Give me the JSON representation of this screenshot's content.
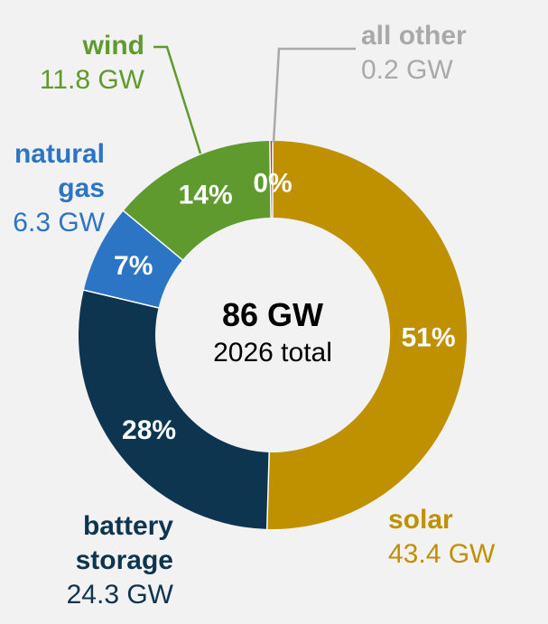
{
  "chart_data": {
    "type": "pie",
    "style": "donut",
    "title": "",
    "center_value": "86 GW",
    "center_label": "2026 total",
    "slices": [
      {
        "name": "solar",
        "value_label": "43.4 GW",
        "value": 43.4,
        "percent_label": "51%",
        "color": "#bf9000"
      },
      {
        "name": "battery storage",
        "name_lines": [
          "battery",
          "storage"
        ],
        "value_label": "24.3 GW",
        "value": 24.3,
        "percent_label": "28%",
        "color": "#0e3550"
      },
      {
        "name": "natural gas",
        "name_lines": [
          "natural",
          "gas"
        ],
        "value_label": "6.3 GW",
        "value": 6.3,
        "percent_label": "7%",
        "color": "#2c75c4"
      },
      {
        "name": "wind",
        "value_label": "11.8 GW",
        "value": 11.8,
        "percent_label": "14%",
        "color": "#5f9a2e"
      },
      {
        "name": "all other",
        "value_label": "0.2 GW",
        "value": 0.2,
        "percent_label": "0%",
        "color": "#a9a9a9",
        "slice_color": "#a0403a"
      }
    ]
  }
}
